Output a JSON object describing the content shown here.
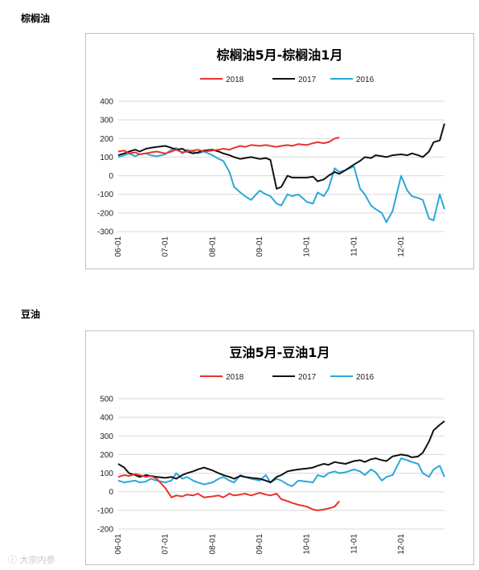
{
  "sections": {
    "palm": "棕榈油",
    "soy": "豆油"
  },
  "watermark": "ⓘ 大宗内参",
  "legend_colors": {
    "2018": "#e8322c",
    "2017": "#111111",
    "2016": "#2aa8d8"
  },
  "chart_data": [
    {
      "type": "line",
      "title": "棕榈油5月-棕榈油1月",
      "xlabel": "",
      "ylabel": "",
      "ylim": [
        -300,
        400
      ],
      "yticks": [
        -300,
        -200,
        -100,
        0,
        100,
        200,
        300,
        400
      ],
      "x_tick_labels": [
        "06-01",
        "07-01",
        "08-01",
        "09-01",
        "10-01",
        "11-01",
        "12-01"
      ],
      "grid": "horizontal",
      "legend": "top-center",
      "series": [
        {
          "name": "2018",
          "color": "#e8322c",
          "x": [
            "06-01",
            "06-05",
            "06-08",
            "06-12",
            "06-15",
            "06-19",
            "06-22",
            "06-26",
            "07-01",
            "07-05",
            "07-08",
            "07-12",
            "07-15",
            "07-19",
            "07-22",
            "07-26",
            "08-01",
            "08-05",
            "08-08",
            "08-12",
            "08-15",
            "08-19",
            "08-22",
            "08-26",
            "09-01",
            "09-05",
            "09-08",
            "09-12",
            "09-15",
            "09-19",
            "09-22",
            "09-26",
            "10-01",
            "10-05",
            "10-08",
            "10-12",
            "10-15",
            "10-19",
            "10-22"
          ],
          "values": [
            130,
            135,
            120,
            125,
            115,
            120,
            125,
            130,
            120,
            130,
            140,
            125,
            130,
            135,
            140,
            130,
            135,
            140,
            145,
            140,
            150,
            160,
            155,
            165,
            160,
            165,
            160,
            155,
            160,
            165,
            160,
            170,
            165,
            175,
            180,
            175,
            180,
            200,
            205
          ]
        },
        {
          "name": "2017",
          "color": "#111111",
          "x": [
            "06-01",
            "06-05",
            "06-08",
            "06-12",
            "06-15",
            "06-19",
            "06-22",
            "06-26",
            "07-01",
            "07-05",
            "07-08",
            "07-12",
            "07-15",
            "07-19",
            "07-22",
            "07-26",
            "08-01",
            "08-05",
            "08-08",
            "08-12",
            "08-15",
            "08-19",
            "08-22",
            "08-26",
            "09-01",
            "09-05",
            "09-08",
            "09-12",
            "09-15",
            "09-19",
            "09-22",
            "09-26",
            "10-01",
            "10-05",
            "10-08",
            "10-12",
            "10-15",
            "10-19",
            "10-22",
            "10-26",
            "11-01",
            "11-05",
            "11-08",
            "11-12",
            "11-15",
            "11-19",
            "11-22",
            "11-26",
            "12-01",
            "12-05",
            "12-08",
            "12-12",
            "12-15",
            "12-19",
            "12-22",
            "12-26",
            "12-29"
          ],
          "values": [
            110,
            120,
            130,
            140,
            130,
            145,
            150,
            155,
            160,
            150,
            140,
            145,
            130,
            120,
            125,
            135,
            140,
            130,
            120,
            110,
            100,
            90,
            95,
            100,
            90,
            95,
            85,
            -70,
            -60,
            0,
            -10,
            -10,
            -10,
            -5,
            -30,
            -20,
            0,
            20,
            10,
            30,
            60,
            80,
            100,
            95,
            110,
            105,
            100,
            110,
            115,
            110,
            120,
            110,
            100,
            130,
            180,
            190,
            280
          ]
        },
        {
          "name": "2016",
          "color": "#2aa8d8",
          "x": [
            "06-01",
            "06-05",
            "06-08",
            "06-12",
            "06-15",
            "06-19",
            "06-22",
            "06-26",
            "07-01",
            "07-05",
            "07-08",
            "07-12",
            "07-15",
            "07-19",
            "07-22",
            "07-26",
            "08-01",
            "08-05",
            "08-08",
            "08-12",
            "08-15",
            "08-19",
            "08-22",
            "08-26",
            "09-01",
            "09-05",
            "09-08",
            "09-12",
            "09-15",
            "09-19",
            "09-22",
            "09-26",
            "10-01",
            "10-05",
            "10-08",
            "10-12",
            "10-15",
            "10-19",
            "10-22",
            "10-26",
            "11-01",
            "11-05",
            "11-08",
            "11-12",
            "11-15",
            "11-19",
            "11-22",
            "11-26",
            "12-01",
            "12-05",
            "12-08",
            "12-12",
            "12-15",
            "12-19",
            "12-22",
            "12-26",
            "12-29"
          ],
          "values": [
            100,
            110,
            120,
            105,
            115,
            120,
            110,
            105,
            115,
            140,
            150,
            120,
            140,
            130,
            120,
            130,
            110,
            90,
            80,
            20,
            -60,
            -90,
            -110,
            -130,
            -80,
            -100,
            -110,
            -150,
            -160,
            -100,
            -110,
            -100,
            -140,
            -150,
            -90,
            -110,
            -70,
            40,
            20,
            30,
            50,
            -70,
            -100,
            -160,
            -180,
            -200,
            -250,
            -190,
            0,
            -80,
            -110,
            -120,
            -130,
            -230,
            -240,
            -100,
            -180
          ]
        }
      ]
    },
    {
      "type": "line",
      "title": "豆油5月-豆油1月",
      "xlabel": "",
      "ylabel": "",
      "ylim": [
        -200,
        500
      ],
      "yticks": [
        -200,
        -100,
        0,
        100,
        200,
        300,
        400,
        500
      ],
      "x_tick_labels": [
        "06-01",
        "07-01",
        "08-01",
        "09-01",
        "10-01",
        "11-01",
        "12-01"
      ],
      "grid": "horizontal",
      "legend": "top-center",
      "series": [
        {
          "name": "2018",
          "color": "#e8322c",
          "x": [
            "06-01",
            "06-05",
            "06-08",
            "06-12",
            "06-15",
            "06-19",
            "06-22",
            "06-26",
            "07-01",
            "07-05",
            "07-08",
            "07-12",
            "07-15",
            "07-19",
            "07-22",
            "07-26",
            "08-01",
            "08-05",
            "08-08",
            "08-12",
            "08-15",
            "08-19",
            "08-22",
            "08-26",
            "09-01",
            "09-05",
            "09-08",
            "09-12",
            "09-15",
            "09-19",
            "09-22",
            "09-26",
            "10-01",
            "10-05",
            "10-08",
            "10-12",
            "10-15",
            "10-19",
            "10-22"
          ],
          "values": [
            80,
            90,
            85,
            95,
            90,
            80,
            85,
            70,
            20,
            -30,
            -20,
            -25,
            -15,
            -20,
            -10,
            -30,
            -25,
            -20,
            -30,
            -10,
            -20,
            -15,
            -10,
            -20,
            -5,
            -15,
            -20,
            -10,
            -40,
            -50,
            -60,
            -70,
            -80,
            -95,
            -100,
            -95,
            -90,
            -80,
            -50
          ]
        },
        {
          "name": "2017",
          "color": "#111111",
          "x": [
            "06-01",
            "06-05",
            "06-08",
            "06-12",
            "06-15",
            "06-19",
            "06-22",
            "06-26",
            "07-01",
            "07-05",
            "07-08",
            "07-12",
            "07-15",
            "07-19",
            "07-22",
            "07-26",
            "08-01",
            "08-05",
            "08-08",
            "08-12",
            "08-15",
            "08-19",
            "08-22",
            "08-26",
            "09-01",
            "09-05",
            "09-08",
            "09-12",
            "09-15",
            "09-19",
            "09-22",
            "09-26",
            "10-01",
            "10-05",
            "10-08",
            "10-12",
            "10-15",
            "10-19",
            "10-22",
            "10-26",
            "11-01",
            "11-05",
            "11-08",
            "11-12",
            "11-15",
            "11-19",
            "11-22",
            "11-26",
            "12-01",
            "12-05",
            "12-08",
            "12-12",
            "12-15",
            "12-19",
            "12-22",
            "12-26",
            "12-29"
          ],
          "values": [
            150,
            130,
            100,
            90,
            80,
            90,
            85,
            80,
            75,
            80,
            70,
            90,
            100,
            110,
            120,
            130,
            115,
            100,
            90,
            80,
            70,
            85,
            80,
            75,
            70,
            60,
            50,
            80,
            90,
            110,
            115,
            120,
            125,
            130,
            140,
            150,
            145,
            160,
            155,
            150,
            165,
            170,
            160,
            175,
            180,
            170,
            165,
            190,
            200,
            195,
            185,
            190,
            210,
            270,
            330,
            360,
            380
          ]
        },
        {
          "name": "2016",
          "color": "#2aa8d8",
          "x": [
            "06-01",
            "06-05",
            "06-08",
            "06-12",
            "06-15",
            "06-19",
            "06-22",
            "06-26",
            "07-01",
            "07-05",
            "07-08",
            "07-12",
            "07-15",
            "07-19",
            "07-22",
            "07-26",
            "08-01",
            "08-05",
            "08-08",
            "08-12",
            "08-15",
            "08-19",
            "08-22",
            "08-26",
            "09-01",
            "09-05",
            "09-08",
            "09-12",
            "09-15",
            "09-19",
            "09-22",
            "09-26",
            "10-01",
            "10-05",
            "10-08",
            "10-12",
            "10-15",
            "10-19",
            "10-22",
            "10-26",
            "11-01",
            "11-05",
            "11-08",
            "11-12",
            "11-15",
            "11-19",
            "11-22",
            "11-26",
            "12-01",
            "12-05",
            "12-08",
            "12-12",
            "12-15",
            "12-19",
            "12-22",
            "12-26",
            "12-29"
          ],
          "values": [
            60,
            50,
            55,
            60,
            50,
            55,
            70,
            60,
            50,
            60,
            100,
            70,
            80,
            60,
            50,
            40,
            50,
            70,
            80,
            60,
            50,
            90,
            80,
            70,
            60,
            90,
            50,
            70,
            60,
            40,
            30,
            60,
            55,
            50,
            90,
            80,
            100,
            110,
            100,
            105,
            120,
            110,
            90,
            120,
            105,
            60,
            80,
            90,
            180,
            170,
            160,
            150,
            100,
            80,
            120,
            140,
            80
          ]
        }
      ]
    }
  ]
}
